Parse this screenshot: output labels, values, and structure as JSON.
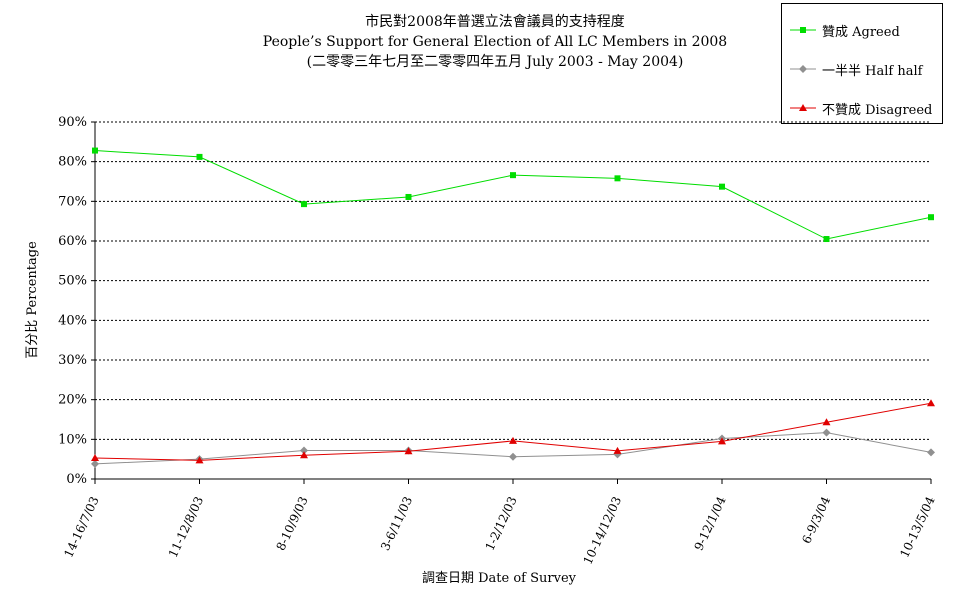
{
  "chart_data": {
    "type": "line",
    "title": "市民對2008年普選立法會議員的支持程度",
    "subtitle": "People’s Support for General Election of All LC Members in 2008",
    "subtitle2": "(二零零三年七月至二零零四年五月 July 2003 - May 2004)",
    "xlabel": "調查日期 Date of Survey",
    "ylabel": "百分比 Percentage",
    "ylim": [
      0,
      90
    ],
    "yticks": [
      0,
      10,
      20,
      30,
      40,
      50,
      60,
      70,
      80,
      90
    ],
    "ytick_labels": [
      "0%",
      "10%",
      "20%",
      "30%",
      "40%",
      "50%",
      "60%",
      "70%",
      "80%",
      "90%"
    ],
    "grid": true,
    "legend_position": "top-right",
    "categories": [
      "14-16/7/03",
      "11-12/8/03",
      "8-10/9/03",
      "3-6/11/03",
      "1-2/12/03",
      "10-14/12/03",
      "9-12/1/04",
      "6-9/3/04",
      "10-13/5/04"
    ],
    "series": [
      {
        "name": "贊成 Agreed",
        "color": "#00dd00",
        "marker": "square",
        "values": [
          82.8,
          81.2,
          69.3,
          71.1,
          76.6,
          75.8,
          73.7,
          60.5,
          66.0
        ]
      },
      {
        "name": "一半半 Half half",
        "color": "#909090",
        "marker": "diamond",
        "values": [
          3.8,
          5.0,
          7.2,
          7.2,
          5.6,
          6.2,
          10.2,
          11.7,
          6.7
        ]
      },
      {
        "name": "不贊成 Disagreed",
        "color": "#e00000",
        "marker": "triangle",
        "values": [
          5.3,
          4.7,
          6.0,
          7.0,
          9.6,
          7.1,
          9.5,
          14.3,
          19.1
        ]
      }
    ]
  }
}
